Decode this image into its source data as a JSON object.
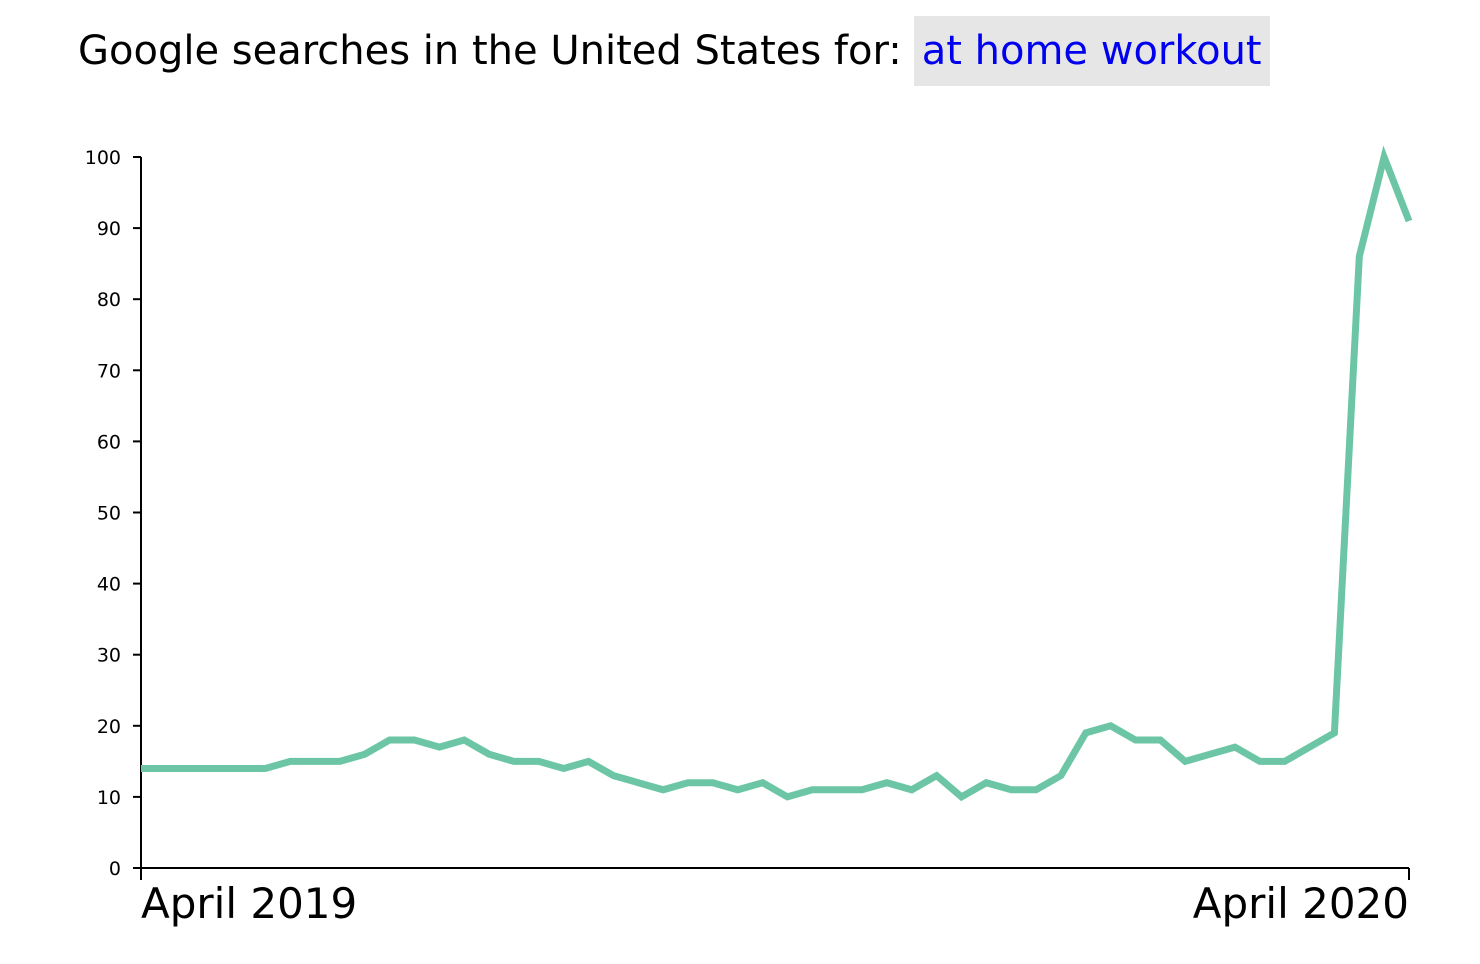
{
  "header": {
    "prefix": "Google searches in the United States for:",
    "term": "at home workout"
  },
  "colors": {
    "line": "#6cc6a6",
    "term_background": "#e6e6e6",
    "term_text": "#0000ee"
  },
  "chart_data": {
    "type": "line",
    "title": "Google searches in the United States for: at home workout",
    "xlabel": "",
    "ylabel": "",
    "ylim": [
      0,
      100
    ],
    "y_ticks": [
      0,
      10,
      20,
      30,
      40,
      50,
      60,
      70,
      80,
      90,
      100
    ],
    "x_tick_labels": [
      "April 2019",
      "April 2020"
    ],
    "grid": false,
    "legend": "none",
    "series": [
      {
        "values": [
          14,
          14,
          14,
          14,
          14,
          14,
          15,
          15,
          15,
          16,
          18,
          18,
          17,
          18,
          16,
          15,
          15,
          14,
          15,
          13,
          12,
          11,
          12,
          12,
          11,
          12,
          10,
          11,
          11,
          11,
          12,
          11,
          13,
          10,
          12,
          11,
          11,
          13,
          19,
          20,
          18,
          18,
          15,
          16,
          17,
          15,
          15,
          17,
          19,
          86,
          100,
          91
        ]
      }
    ]
  }
}
